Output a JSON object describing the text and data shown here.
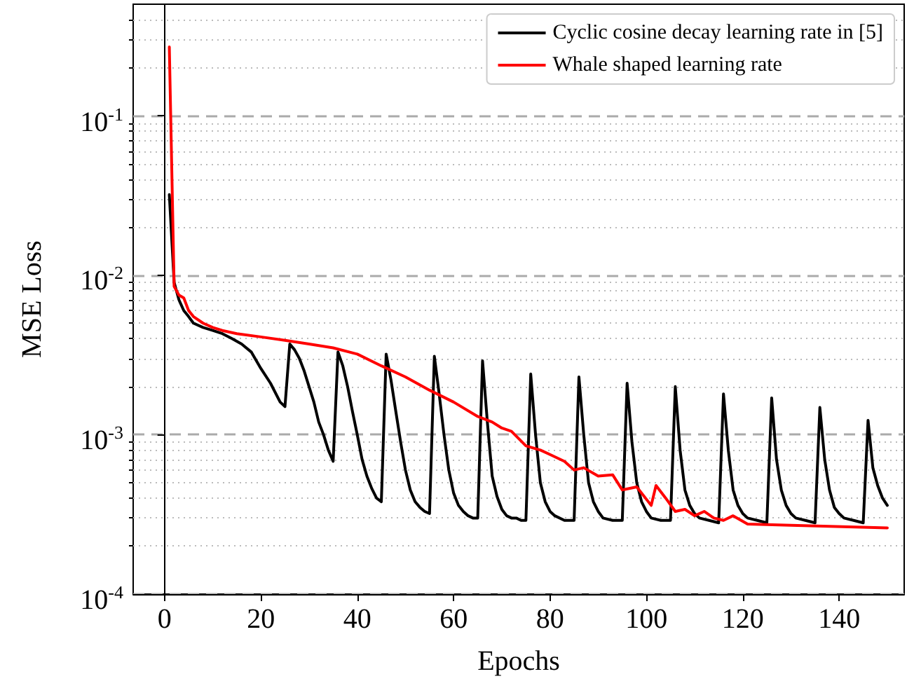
{
  "chart_data": {
    "type": "line",
    "xlabel": "Epochs",
    "ylabel": "MSE Loss",
    "log": "y",
    "grid": "y",
    "legend": "top right",
    "marker": "none",
    "line_style": "solid",
    "xlim": [
      -6.5,
      153.5
    ],
    "xticks": [
      0,
      20,
      40,
      60,
      80,
      100,
      120,
      140
    ],
    "ylim": [
      0.0001,
      0.5
    ],
    "yticks": [
      {
        "value": 0.0001,
        "label": "10$^{-4}$"
      },
      {
        "value": 0.001,
        "label": "10$^{-3}$"
      },
      {
        "value": 0.01,
        "label": "10$^{-2}$"
      },
      {
        "value": 0.1,
        "label": "10$^{-1}$"
      }
    ],
    "series": [
      {
        "name": "Cyclic cosine decay learning rate in [5]",
        "color": "#000000",
        "x": [
          1,
          2,
          3,
          4,
          5,
          6,
          8,
          10,
          12,
          14,
          16,
          18,
          20,
          22,
          24,
          25,
          26,
          27,
          28,
          29,
          30,
          31,
          32,
          33,
          34,
          35,
          36,
          37,
          38,
          39,
          40,
          41,
          42,
          43,
          44,
          45,
          46,
          47,
          48,
          49,
          50,
          51,
          52,
          53,
          54,
          55,
          56,
          57,
          58,
          59,
          60,
          61,
          62,
          63,
          64,
          65,
          66,
          67,
          68,
          69,
          70,
          71,
          72,
          73,
          74,
          75,
          76,
          77,
          78,
          79,
          80,
          81,
          83,
          85,
          86,
          87,
          88,
          89,
          90,
          91,
          93,
          95,
          96,
          97,
          98,
          99,
          100,
          101,
          103,
          105,
          106,
          107,
          108,
          109,
          110,
          111,
          113,
          115,
          116,
          117,
          118,
          119,
          120,
          121,
          123,
          125,
          126,
          127,
          128,
          129,
          130,
          131,
          133,
          135,
          136,
          137,
          138,
          139,
          140,
          141,
          143,
          145,
          146,
          147,
          148,
          149,
          150
        ],
        "values": [
          0.032,
          0.009,
          0.007,
          0.006,
          0.0055,
          0.005,
          0.0047,
          0.0045,
          0.0043,
          0.004,
          0.0037,
          0.0033,
          0.0026,
          0.0021,
          0.0016,
          0.0015,
          0.0037,
          0.0034,
          0.003,
          0.0025,
          0.002,
          0.0016,
          0.0012,
          0.001,
          0.0008,
          0.00068,
          0.0033,
          0.0027,
          0.002,
          0.0014,
          0.001,
          0.0007,
          0.00055,
          0.00046,
          0.0004,
          0.00038,
          0.0032,
          0.0022,
          0.0014,
          0.0009,
          0.0006,
          0.00045,
          0.00038,
          0.00035,
          0.00033,
          0.00032,
          0.0031,
          0.0018,
          0.001,
          0.0006,
          0.00043,
          0.00036,
          0.00033,
          0.00031,
          0.0003,
          0.0003,
          0.0029,
          0.0012,
          0.00055,
          0.00041,
          0.00034,
          0.00031,
          0.0003,
          0.0003,
          0.00029,
          0.00029,
          0.0024,
          0.001,
          0.0005,
          0.00038,
          0.00033,
          0.00031,
          0.00029,
          0.00029,
          0.0023,
          0.001,
          0.0005,
          0.00038,
          0.00033,
          0.0003,
          0.00029,
          0.00029,
          0.0021,
          0.0009,
          0.0005,
          0.00038,
          0.00033,
          0.0003,
          0.00029,
          0.00029,
          0.002,
          0.0008,
          0.00045,
          0.00036,
          0.00032,
          0.0003,
          0.00029,
          0.00028,
          0.0018,
          0.0008,
          0.00045,
          0.00036,
          0.00032,
          0.0003,
          0.00029,
          0.00028,
          0.0017,
          0.0007,
          0.00045,
          0.00036,
          0.00032,
          0.0003,
          0.00029,
          0.00028,
          0.00148,
          0.0007,
          0.00045,
          0.00035,
          0.00032,
          0.0003,
          0.00029,
          0.00028,
          0.00123,
          0.00062,
          0.00048,
          0.0004,
          0.00036
        ]
      },
      {
        "name": "Whale shaped learning rate",
        "color": "#ff0000",
        "x": [
          1,
          2,
          3,
          4,
          5,
          6,
          8,
          10,
          12,
          15,
          20,
          25,
          30,
          35,
          40,
          45,
          50,
          55,
          60,
          65,
          68,
          70,
          72,
          75,
          78,
          80,
          83,
          85,
          87,
          90,
          93,
          95,
          98,
          101,
          102,
          104,
          106,
          108,
          110,
          112,
          114,
          116,
          118,
          121,
          130,
          150
        ],
        "values": [
          0.27,
          0.0085,
          0.0075,
          0.0072,
          0.006,
          0.0055,
          0.005,
          0.0047,
          0.0045,
          0.0043,
          0.0041,
          0.0039,
          0.0037,
          0.0035,
          0.0032,
          0.0027,
          0.0023,
          0.0019,
          0.0016,
          0.0013,
          0.0012,
          0.0011,
          0.00105,
          0.00085,
          0.0008,
          0.00075,
          0.00068,
          0.0006,
          0.00062,
          0.00055,
          0.00056,
          0.00045,
          0.00047,
          0.00036,
          0.00048,
          0.0004,
          0.00033,
          0.00034,
          0.00031,
          0.00033,
          0.0003,
          0.00029,
          0.00031,
          0.000275,
          0.00027,
          0.00026
        ]
      }
    ]
  }
}
